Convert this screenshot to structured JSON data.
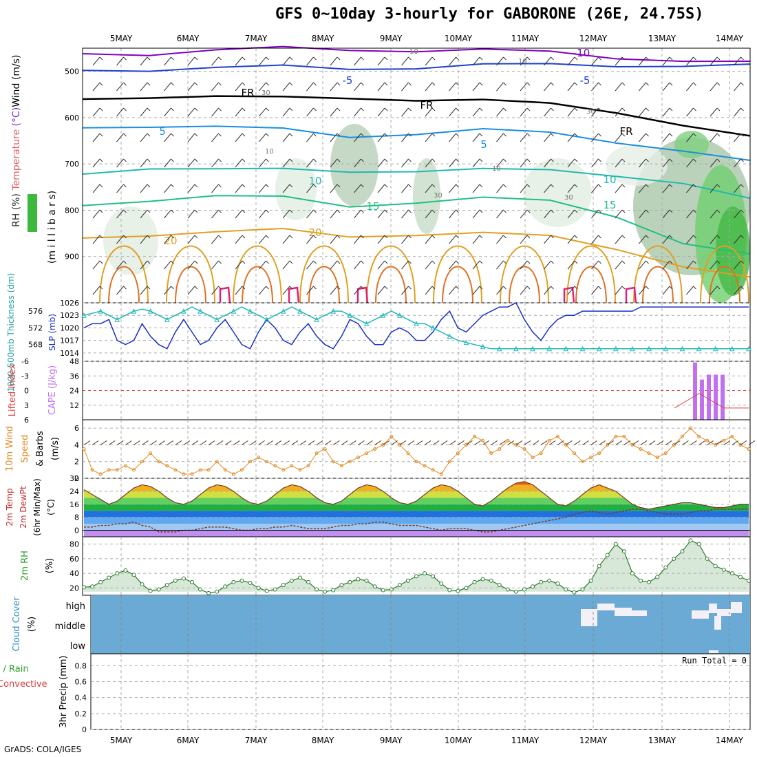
{
  "title": "GFS 0~10day 3-hourly for GABORONE (26E, 24.75S)",
  "credit": "GrADS: COLA/IGES",
  "dates": [
    "5MAY",
    "6MAY",
    "7MAY",
    "8MAY",
    "9MAY",
    "10MAY",
    "11MAY",
    "12MAY",
    "13MAY",
    "14MAY"
  ],
  "chart_data": [
    {
      "type": "contour",
      "name": "upper-air",
      "ylabel_parts": [
        "RH (%)",
        "Temperature",
        "(°C)",
        "Wind",
        "(m/s)"
      ],
      "ylabel2": "(m i l l i b a r s)",
      "yticks": [
        500,
        600,
        700,
        800,
        900
      ],
      "ylim": [
        1000,
        450
      ],
      "temperature_labels": [
        "-10",
        "-5",
        "-5",
        "-5",
        "FR",
        "FR",
        "FR",
        "5",
        "5",
        "5",
        "10",
        "10",
        "15",
        "15",
        "20",
        "20"
      ],
      "rh_labels": [
        "10",
        "10",
        "30",
        "10",
        "30",
        "10",
        "30",
        "30"
      ],
      "isotherms": [
        {
          "label": "-10",
          "color": "#8000c0",
          "p": [
            462,
            460,
            455,
            452,
            452,
            453,
            456,
            460,
            468,
            476,
            484
          ]
        },
        {
          "label": "-5",
          "color": "#1f3fd0",
          "p": [
            498,
            494,
            493,
            492,
            493,
            490,
            488,
            487,
            485,
            487,
            490
          ]
        },
        {
          "label": "FR",
          "color": "#000000",
          "p": [
            560,
            552,
            555,
            560,
            556,
            559,
            565,
            572,
            585,
            615,
            645
          ]
        },
        {
          "label": "5",
          "color": "#1a8ee0",
          "p": [
            622,
            615,
            620,
            628,
            640,
            632,
            628,
            635,
            650,
            670,
            698
          ]
        },
        {
          "label": "10",
          "color": "#20b8b0",
          "p": [
            722,
            705,
            712,
            715,
            715,
            712,
            714,
            716,
            722,
            740,
            780
          ]
        },
        {
          "label": "15",
          "color": "#20c080",
          "p": [
            790,
            775,
            770,
            775,
            790,
            780,
            776,
            782,
            810,
            870,
            900
          ]
        },
        {
          "label": "20",
          "color": "#e0a020",
          "p": [
            860,
            850,
            848,
            845,
            855,
            850,
            852,
            858,
            880,
            920,
            950
          ]
        }
      ]
    },
    {
      "type": "line",
      "name": "thickness-slp",
      "ylabel_left": [
        "1000-500mb",
        "Thickness",
        "(dm)"
      ],
      "ylabel_right": [
        "SLP",
        "(mb)"
      ],
      "yticks_left": [
        568,
        572,
        576
      ],
      "yticks_right": [
        1014,
        1017,
        1020,
        1023,
        1026
      ],
      "series": [
        {
          "name": "SLP",
          "color": "#1830c8",
          "values": [
            1020,
            1021,
            1021,
            1022,
            1017,
            1016,
            1017,
            1021,
            1018,
            1016,
            1015,
            1019,
            1022,
            1019,
            1016,
            1017,
            1020,
            1022,
            1019,
            1016,
            1015,
            1019,
            1022,
            1020,
            1017,
            1016,
            1019,
            1021,
            1018,
            1016,
            1015,
            1018,
            1022,
            1021,
            1018,
            1016,
            1016,
            1019,
            1020,
            1019,
            1017,
            1017,
            1019,
            1022,
            1024,
            1020,
            1019,
            1021,
            1023,
            1024,
            1025,
            1025,
            1026,
            1022,
            1019,
            1017,
            1020,
            1022,
            1023,
            1023,
            1024,
            1024,
            1024,
            1024,
            1024,
            1024,
            1024,
            1025,
            1025,
            1025,
            1025,
            1025,
            1025,
            1025,
            1025,
            1025,
            1025,
            1025,
            1025,
            1025,
            1025
          ]
        },
        {
          "name": "Thickness",
          "color": "#20b8b8",
          "values": [
            575,
            575.5,
            576,
            575,
            574,
            575,
            576,
            576.5,
            576,
            575,
            574,
            575,
            576,
            577,
            576,
            575,
            574,
            575,
            576,
            577,
            576,
            575,
            574,
            575,
            576,
            577,
            576,
            575,
            574,
            575,
            576,
            576,
            575,
            574,
            573,
            574,
            575,
            576,
            575,
            574,
            573,
            573,
            572,
            571,
            570,
            569,
            568.5,
            568,
            567.5,
            567,
            567,
            567,
            567,
            567,
            567,
            567,
            567,
            567,
            567,
            567,
            567,
            567,
            567,
            567,
            567,
            567,
            567,
            567,
            567,
            567,
            567,
            567,
            567,
            567,
            567,
            567,
            567,
            567,
            567,
            567,
            567
          ]
        }
      ]
    },
    {
      "type": "bar",
      "name": "cape-li",
      "ylabel_left": [
        "Lifted Index"
      ],
      "ylabel_right": [
        "CAPE",
        "(J/kg)"
      ],
      "yticks_left": [
        -6,
        -3,
        0,
        3,
        6
      ],
      "yticks_right": [
        12,
        24,
        36,
        48
      ],
      "cape_bars": [
        47,
        33,
        37,
        37,
        37
      ],
      "lifted_index": [
        5,
        4,
        3,
        2,
        3,
        4,
        5,
        5,
        5,
        5
      ]
    },
    {
      "type": "line",
      "name": "10m-wind",
      "ylabel_parts": [
        "10m Wind",
        "Speed",
        "& Barbs",
        "(m/s)"
      ],
      "yticks": [
        0,
        2,
        4,
        6
      ],
      "series": [
        {
          "name": "Speed",
          "color": "#e08a20",
          "values": [
            3.5,
            1,
            0.5,
            1,
            1,
            1.5,
            1,
            2,
            3,
            2,
            1.5,
            1,
            0.5,
            0.5,
            1,
            1,
            2,
            1,
            0.5,
            1,
            2,
            2.5,
            2,
            1.5,
            1,
            1.5,
            1,
            1.5,
            3,
            3.5,
            2,
            1.5,
            2,
            2.5,
            3,
            3.5,
            4,
            5,
            4,
            3,
            2,
            1.5,
            1,
            0.5,
            2,
            3,
            4,
            5,
            4.5,
            3,
            3.5,
            4.5,
            4,
            3.5,
            2.5,
            3,
            4.5,
            5,
            4,
            3,
            2,
            2.5,
            3,
            4,
            5,
            5,
            4,
            3.5,
            3,
            2.5,
            3,
            4,
            5,
            6,
            5,
            4.5,
            4,
            4.5,
            5,
            4,
            3.5
          ]
        }
      ]
    },
    {
      "type": "area",
      "name": "2m-temp",
      "ylabel_parts": [
        "2m Temp",
        "2m DewPt",
        "(6hr Min/Max)",
        "(°C)"
      ],
      "yticks": [
        0,
        8,
        16,
        24,
        32
      ],
      "series": [
        {
          "name": "Temp",
          "values": [
            25,
            22,
            19,
            16,
            18,
            22,
            26,
            28,
            27,
            24,
            20,
            17,
            16,
            18,
            22,
            26,
            28,
            27,
            24,
            20,
            17,
            16,
            18,
            22,
            26,
            28,
            27,
            24,
            20,
            17,
            16,
            18,
            22,
            26,
            28,
            27,
            24,
            20,
            17,
            16,
            18,
            22,
            26,
            28,
            27,
            24,
            20,
            16,
            15,
            18,
            22,
            26,
            29,
            30,
            28,
            24,
            20,
            16,
            15,
            18,
            22,
            26,
            28,
            26,
            24,
            20,
            16,
            14,
            13,
            14,
            15,
            16,
            17,
            17,
            16,
            15,
            14,
            14,
            15,
            16,
            16
          ]
        },
        {
          "name": "DewPt",
          "values": [
            2,
            2,
            3,
            3,
            4,
            4,
            5,
            3,
            2,
            -1,
            -1,
            -1,
            0,
            0,
            1,
            2,
            2,
            2,
            1,
            0,
            0,
            1,
            1,
            2,
            2,
            3,
            2,
            1,
            1,
            1,
            2,
            3,
            3,
            4,
            4,
            5,
            5,
            4,
            3,
            3,
            3,
            2,
            1,
            0,
            1,
            1,
            1,
            0,
            -1,
            -1,
            0,
            1,
            2,
            3,
            4,
            5,
            6,
            7,
            8,
            10,
            11,
            12,
            11,
            10,
            11,
            12,
            13,
            13,
            12,
            11,
            10,
            10,
            10,
            11,
            12,
            12,
            13,
            13,
            13,
            13,
            13
          ]
        }
      ]
    },
    {
      "type": "area",
      "name": "2m-rh",
      "ylabel_parts": [
        "2m RH",
        "(%)"
      ],
      "yticks": [
        20,
        40,
        60,
        80
      ],
      "series": [
        {
          "name": "RH",
          "values": [
            21,
            22,
            28,
            34,
            40,
            44,
            38,
            25,
            16,
            18,
            24,
            30,
            33,
            28,
            18,
            13,
            15,
            22,
            28,
            30,
            27,
            20,
            16,
            18,
            24,
            30,
            34,
            28,
            18,
            15,
            17,
            24,
            28,
            32,
            30,
            22,
            17,
            18,
            24,
            30,
            36,
            40,
            36,
            26,
            17,
            16,
            20,
            28,
            32,
            30,
            24,
            18,
            15,
            18,
            22,
            28,
            30,
            26,
            18,
            14,
            18,
            30,
            50,
            65,
            80,
            70,
            40,
            30,
            28,
            35,
            48,
            60,
            70,
            85,
            80,
            60,
            50,
            45,
            40,
            35,
            30
          ]
        }
      ]
    },
    {
      "type": "bar",
      "name": "cloud-cover",
      "ylabel_parts": [
        "Cloud Cover",
        "(%)"
      ],
      "levels": [
        "high",
        "middle",
        "low"
      ]
    },
    {
      "type": "bar",
      "name": "precip",
      "ylabel_parts": [
        "Total / Rain",
        "Convective",
        "3hr Precip (mm)"
      ],
      "yticks": [
        "0",
        "0.2",
        "0.4",
        "0.6",
        "0.8"
      ],
      "run_total": "Run Total = 0"
    }
  ]
}
